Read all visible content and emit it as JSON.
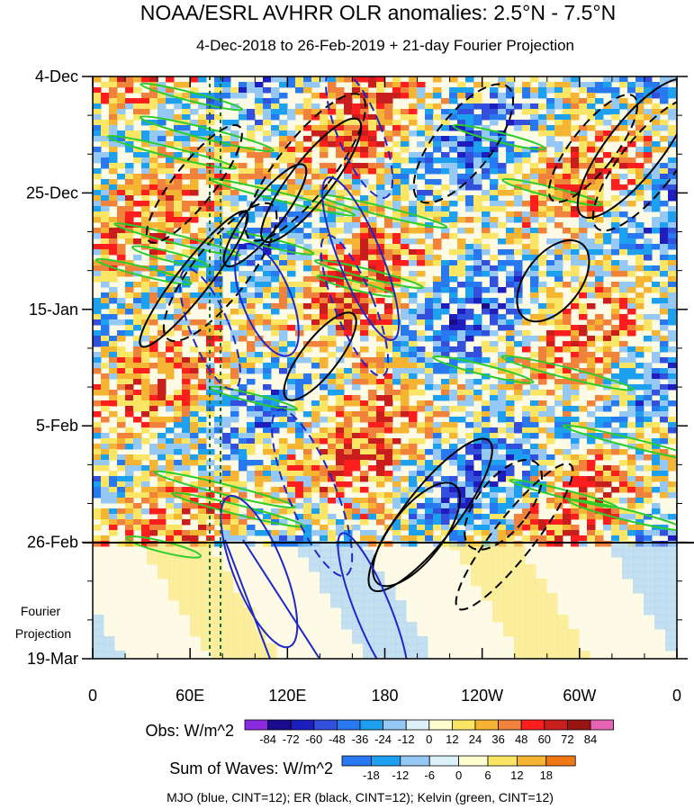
{
  "chart_data": {
    "type": "heatmap",
    "title": "NOAA/ESRL AVHRR OLR anomalies: 2.5°N - 7.5°N",
    "subtitle": "4-Dec-2018 to 26-Feb-2019 + 21-day Fourier Projection",
    "x_ticks": [
      "0",
      "60E",
      "120E",
      "180",
      "120W",
      "60W",
      "0"
    ],
    "y_ticks": [
      "4-Dec",
      "25-Dec",
      "15-Jan",
      "5-Feb",
      "26-Feb",
      "19-Mar"
    ],
    "y_extra_label": [
      "Fourier",
      "Projection"
    ],
    "obs_bar": {
      "label": "Obs: W/m^2",
      "levels": [
        "-84",
        "-72",
        "-60",
        "-48",
        "-36",
        "-24",
        "-12",
        "0",
        "12",
        "24",
        "36",
        "48",
        "60",
        "72",
        "84"
      ],
      "colors": [
        "#8a2be2",
        "#1a0a8c",
        "#1e1ebe",
        "#3250dc",
        "#2878f0",
        "#1ea0f0",
        "#96c8f5",
        "#dcf0fa",
        "#ffffd2",
        "#fae664",
        "#f5b432",
        "#f0823c",
        "#ff1e1e",
        "#c81e1e",
        "#9b1414",
        "#e664b4"
      ]
    },
    "wave_bar": {
      "label": "Sum of Waves: W/m^2",
      "levels": [
        "-18",
        "-12",
        "-6",
        "0",
        "6",
        "12",
        "18"
      ],
      "colors": [
        "#2878f0",
        "#1ea0f0",
        "#96c8f5",
        "#dcf0fa",
        "#ffffd2",
        "#fae664",
        "#f5b432",
        "#f07814"
      ]
    },
    "footer": "MJO (blue, CINT=12); ER (black, CINT=12); Kelvin (green, CINT=12)",
    "colors": {
      "mjo": "#1e28c8",
      "er": "#000000",
      "kelvin": "#2ccc2c"
    }
  }
}
